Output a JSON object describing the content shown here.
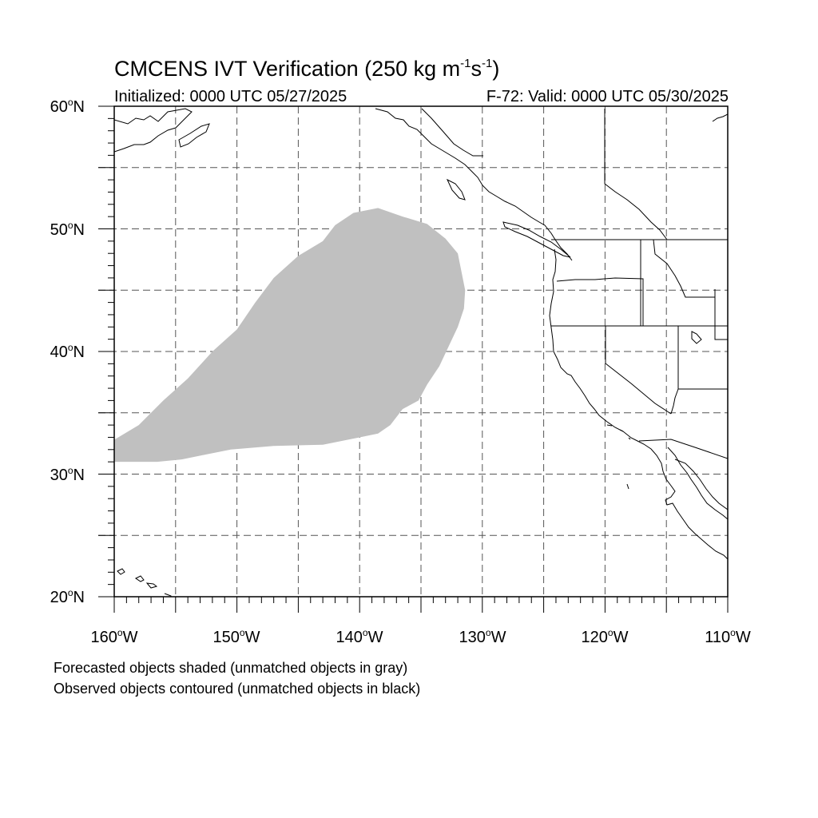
{
  "title": {
    "prefix": "CMCENS IVT Verification (250 kg m",
    "exp1": "-1",
    "mid": "s",
    "exp2": "-1",
    "suffix": ")"
  },
  "subtitle_left": "Initialized: 0000 UTC 05/27/2025",
  "subtitle_right": "F-72: Valid: 0000 UTC 05/30/2025",
  "axes": {
    "lat_labels": [
      {
        "value": 60,
        "text": "60",
        "suffix": "N"
      },
      {
        "value": 50,
        "text": "50",
        "suffix": "N"
      },
      {
        "value": 40,
        "text": "40",
        "suffix": "N"
      },
      {
        "value": 30,
        "text": "30",
        "suffix": "N"
      },
      {
        "value": 20,
        "text": "20",
        "suffix": "N"
      }
    ],
    "lon_labels": [
      {
        "value": -160,
        "text": "160",
        "suffix": "W"
      },
      {
        "value": -150,
        "text": "150",
        "suffix": "W"
      },
      {
        "value": -140,
        "text": "140",
        "suffix": "W"
      },
      {
        "value": -130,
        "text": "130",
        "suffix": "W"
      },
      {
        "value": -120,
        "text": "120",
        "suffix": "W"
      },
      {
        "value": -110,
        "text": "110",
        "suffix": "W"
      }
    ],
    "degree_symbol": "o",
    "lon_range": [
      -160,
      -110
    ],
    "lat_range": [
      20,
      60
    ],
    "grid_spacing_deg": 5,
    "grid_style": "dashed"
  },
  "forecast_object": {
    "status": "unmatched",
    "fill_color": "#c0c0c0",
    "outline_latlon": [
      [
        -160.0,
        31.0
      ],
      [
        -158.0,
        31.0
      ],
      [
        -156.5,
        31.0
      ],
      [
        -154.5,
        31.2
      ],
      [
        -152.5,
        31.6
      ],
      [
        -150.5,
        32.0
      ],
      [
        -147.0,
        32.3
      ],
      [
        -143.0,
        32.4
      ],
      [
        -140.0,
        33.0
      ],
      [
        -138.5,
        33.3
      ],
      [
        -137.5,
        34.0
      ],
      [
        -136.5,
        35.3
      ],
      [
        -135.2,
        36.0
      ],
      [
        -134.5,
        37.3
      ],
      [
        -133.5,
        38.8
      ],
      [
        -132.8,
        40.3
      ],
      [
        -132.0,
        42.0
      ],
      [
        -131.5,
        43.5
      ],
      [
        -131.4,
        45.0
      ],
      [
        -131.7,
        46.5
      ],
      [
        -132.0,
        48.0
      ],
      [
        -133.0,
        49.2
      ],
      [
        -134.5,
        50.4
      ],
      [
        -136.5,
        51.0
      ],
      [
        -138.5,
        51.7
      ],
      [
        -140.5,
        51.3
      ],
      [
        -142.0,
        50.3
      ],
      [
        -143.0,
        49.0
      ],
      [
        -145.0,
        47.8
      ],
      [
        -147.0,
        46.0
      ],
      [
        -148.5,
        44.0
      ],
      [
        -150.0,
        41.8
      ],
      [
        -152.0,
        40.0
      ],
      [
        -154.0,
        37.8
      ],
      [
        -156.0,
        36.0
      ],
      [
        -158.0,
        34.0
      ],
      [
        -160.0,
        32.8
      ]
    ]
  },
  "legend_lines": [
    "Forecasted objects shaded (unmatched objects in gray)",
    "Observed objects contoured (unmatched objects in black)"
  ],
  "colors": {
    "map_lines": "#000000",
    "grid": "#555555",
    "unmatched_forecast": "#c0c0c0"
  }
}
